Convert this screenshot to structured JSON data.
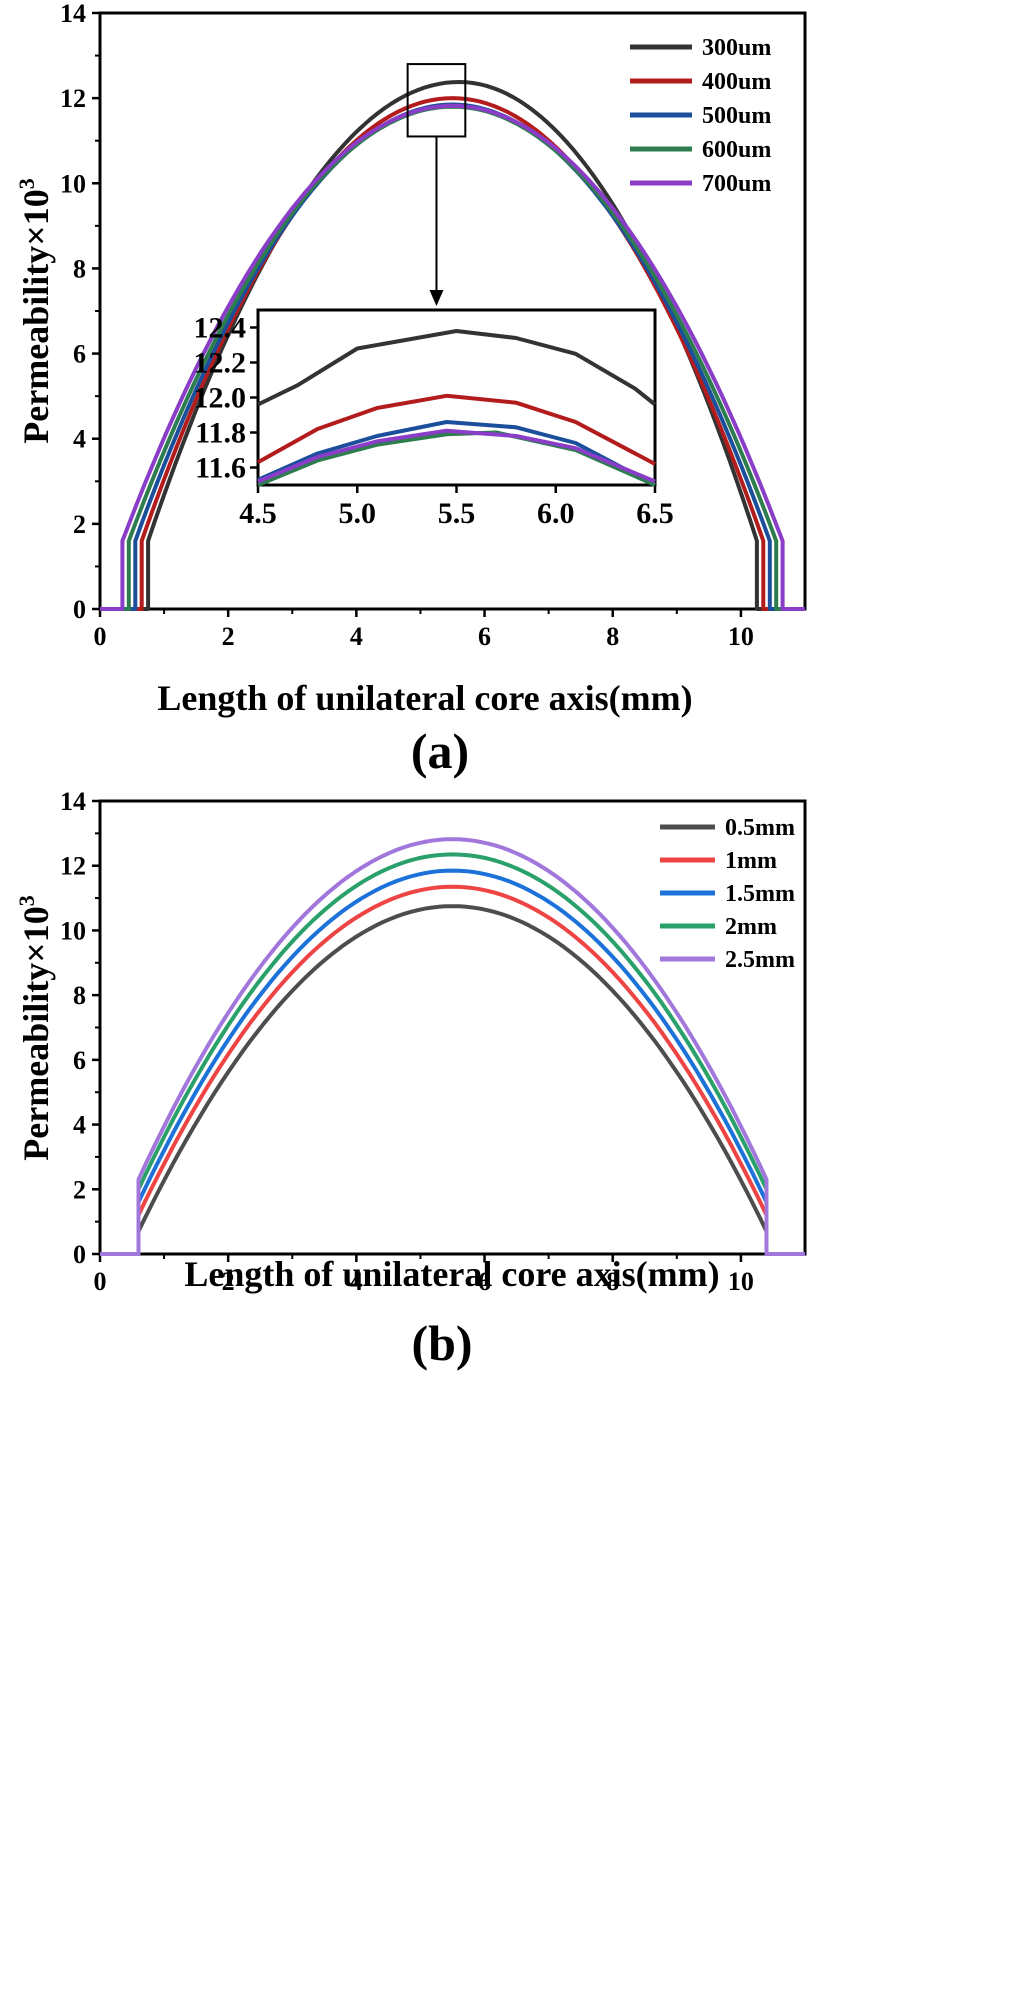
{
  "chart_data": [
    {
      "type": "line",
      "panel_label": "(a)",
      "xlabel": "Length of unilateral core axis(mm)",
      "ylabel": "Permeability×10",
      "ylabel_exponent": "3",
      "xlim": [
        0,
        11
      ],
      "ylim": [
        0,
        14
      ],
      "xticks": [
        0,
        2,
        4,
        6,
        8,
        10
      ],
      "yticks": [
        0,
        2,
        4,
        6,
        8,
        10,
        12,
        14
      ],
      "legend_position": "top-right",
      "series": [
        {
          "name": "300um",
          "color": "#333333",
          "x_start": 0.75,
          "x_end": 10.25,
          "edge": 1.6,
          "peak": 12.38,
          "peak_x": 5.6,
          "wide": 0
        },
        {
          "name": "400um",
          "color": "#b31c1c",
          "x_start": 0.65,
          "x_end": 10.35,
          "edge": 1.6,
          "peak": 12.0,
          "peak_x": 5.5,
          "wide": 0.05
        },
        {
          "name": "500um",
          "color": "#1b4f9c",
          "x_start": 0.55,
          "x_end": 10.45,
          "edge": 1.6,
          "peak": 11.85,
          "peak_x": 5.5,
          "wide": 0.1
        },
        {
          "name": "600um",
          "color": "#2e7d4f",
          "x_start": 0.45,
          "x_end": 10.55,
          "edge": 1.6,
          "peak": 11.8,
          "peak_x": 5.5,
          "wide": 0.12
        },
        {
          "name": "700um",
          "color": "#8a3dc7",
          "x_start": 0.35,
          "x_end": 10.65,
          "edge": 1.6,
          "peak": 11.82,
          "peak_x": 5.5,
          "wide": 0.14
        }
      ],
      "inset": {
        "xlim": [
          4.5,
          6.5
        ],
        "ylim": [
          11.5,
          12.5
        ],
        "xticks": [
          "4.5",
          "5.0",
          "5.5",
          "6.0",
          "6.5"
        ],
        "yticks": [
          "11.6",
          "11.8",
          "12.0",
          "12.2",
          "12.4"
        ],
        "zoom_box": {
          "x": [
            4.8,
            5.7
          ],
          "y": [
            11.1,
            12.8
          ]
        },
        "series": [
          {
            "name": "300um",
            "points": [
              [
                4.5,
                11.96
              ],
              [
                4.7,
                12.07
              ],
              [
                5.0,
                12.28
              ],
              [
                5.2,
                12.32
              ],
              [
                5.5,
                12.38
              ],
              [
                5.8,
                12.34
              ],
              [
                6.1,
                12.25
              ],
              [
                6.4,
                12.05
              ],
              [
                6.5,
                11.96
              ]
            ]
          },
          {
            "name": "400um",
            "points": [
              [
                4.5,
                11.63
              ],
              [
                4.8,
                11.82
              ],
              [
                5.1,
                11.94
              ],
              [
                5.45,
                12.01
              ],
              [
                5.8,
                11.97
              ],
              [
                6.1,
                11.86
              ],
              [
                6.5,
                11.62
              ]
            ]
          },
          {
            "name": "500um",
            "points": [
              [
                4.5,
                11.53
              ],
              [
                4.8,
                11.68
              ],
              [
                5.1,
                11.78
              ],
              [
                5.45,
                11.86
              ],
              [
                5.8,
                11.83
              ],
              [
                6.1,
                11.74
              ],
              [
                6.5,
                11.5
              ]
            ]
          },
          {
            "name": "600um",
            "points": [
              [
                4.5,
                11.5
              ],
              [
                4.8,
                11.64
              ],
              [
                5.1,
                11.73
              ],
              [
                5.45,
                11.79
              ],
              [
                5.7,
                11.8
              ],
              [
                6.1,
                11.7
              ],
              [
                6.5,
                11.5
              ]
            ]
          },
          {
            "name": "700um",
            "points": [
              [
                4.5,
                11.52
              ],
              [
                4.8,
                11.66
              ],
              [
                5.1,
                11.75
              ],
              [
                5.45,
                11.81
              ],
              [
                5.8,
                11.78
              ],
              [
                6.1,
                11.71
              ],
              [
                6.5,
                11.52
              ]
            ]
          }
        ]
      }
    },
    {
      "type": "line",
      "panel_label": "(b)",
      "xlabel": "Length of unilateral core axis(mm)",
      "ylabel": "Permeability×10",
      "ylabel_exponent": "3",
      "xlim": [
        0,
        11
      ],
      "ylim": [
        0,
        14
      ],
      "xticks": [
        0,
        2,
        4,
        6,
        8,
        10
      ],
      "yticks": [
        0,
        2,
        4,
        6,
        8,
        10,
        12,
        14
      ],
      "legend_position": "top-right",
      "series": [
        {
          "name": "0.5mm",
          "color": "#4d4d4d",
          "x_start": 0.6,
          "x_end": 10.4,
          "edge": 0.7,
          "peak": 10.75,
          "peak_x": 5.5
        },
        {
          "name": "1mm",
          "color": "#ee4444",
          "x_start": 0.6,
          "x_end": 10.4,
          "edge": 1.2,
          "peak": 11.35,
          "peak_x": 5.5
        },
        {
          "name": "1.5mm",
          "color": "#1c72d8",
          "x_start": 0.6,
          "x_end": 10.4,
          "edge": 1.6,
          "peak": 11.85,
          "peak_x": 5.5
        },
        {
          "name": "2mm",
          "color": "#2aa06a",
          "x_start": 0.6,
          "x_end": 10.4,
          "edge": 2.0,
          "peak": 12.35,
          "peak_x": 5.5
        },
        {
          "name": "2.5mm",
          "color": "#a277dc",
          "x_start": 0.6,
          "x_end": 10.4,
          "edge": 2.3,
          "peak": 12.82,
          "peak_x": 5.5
        }
      ]
    }
  ]
}
